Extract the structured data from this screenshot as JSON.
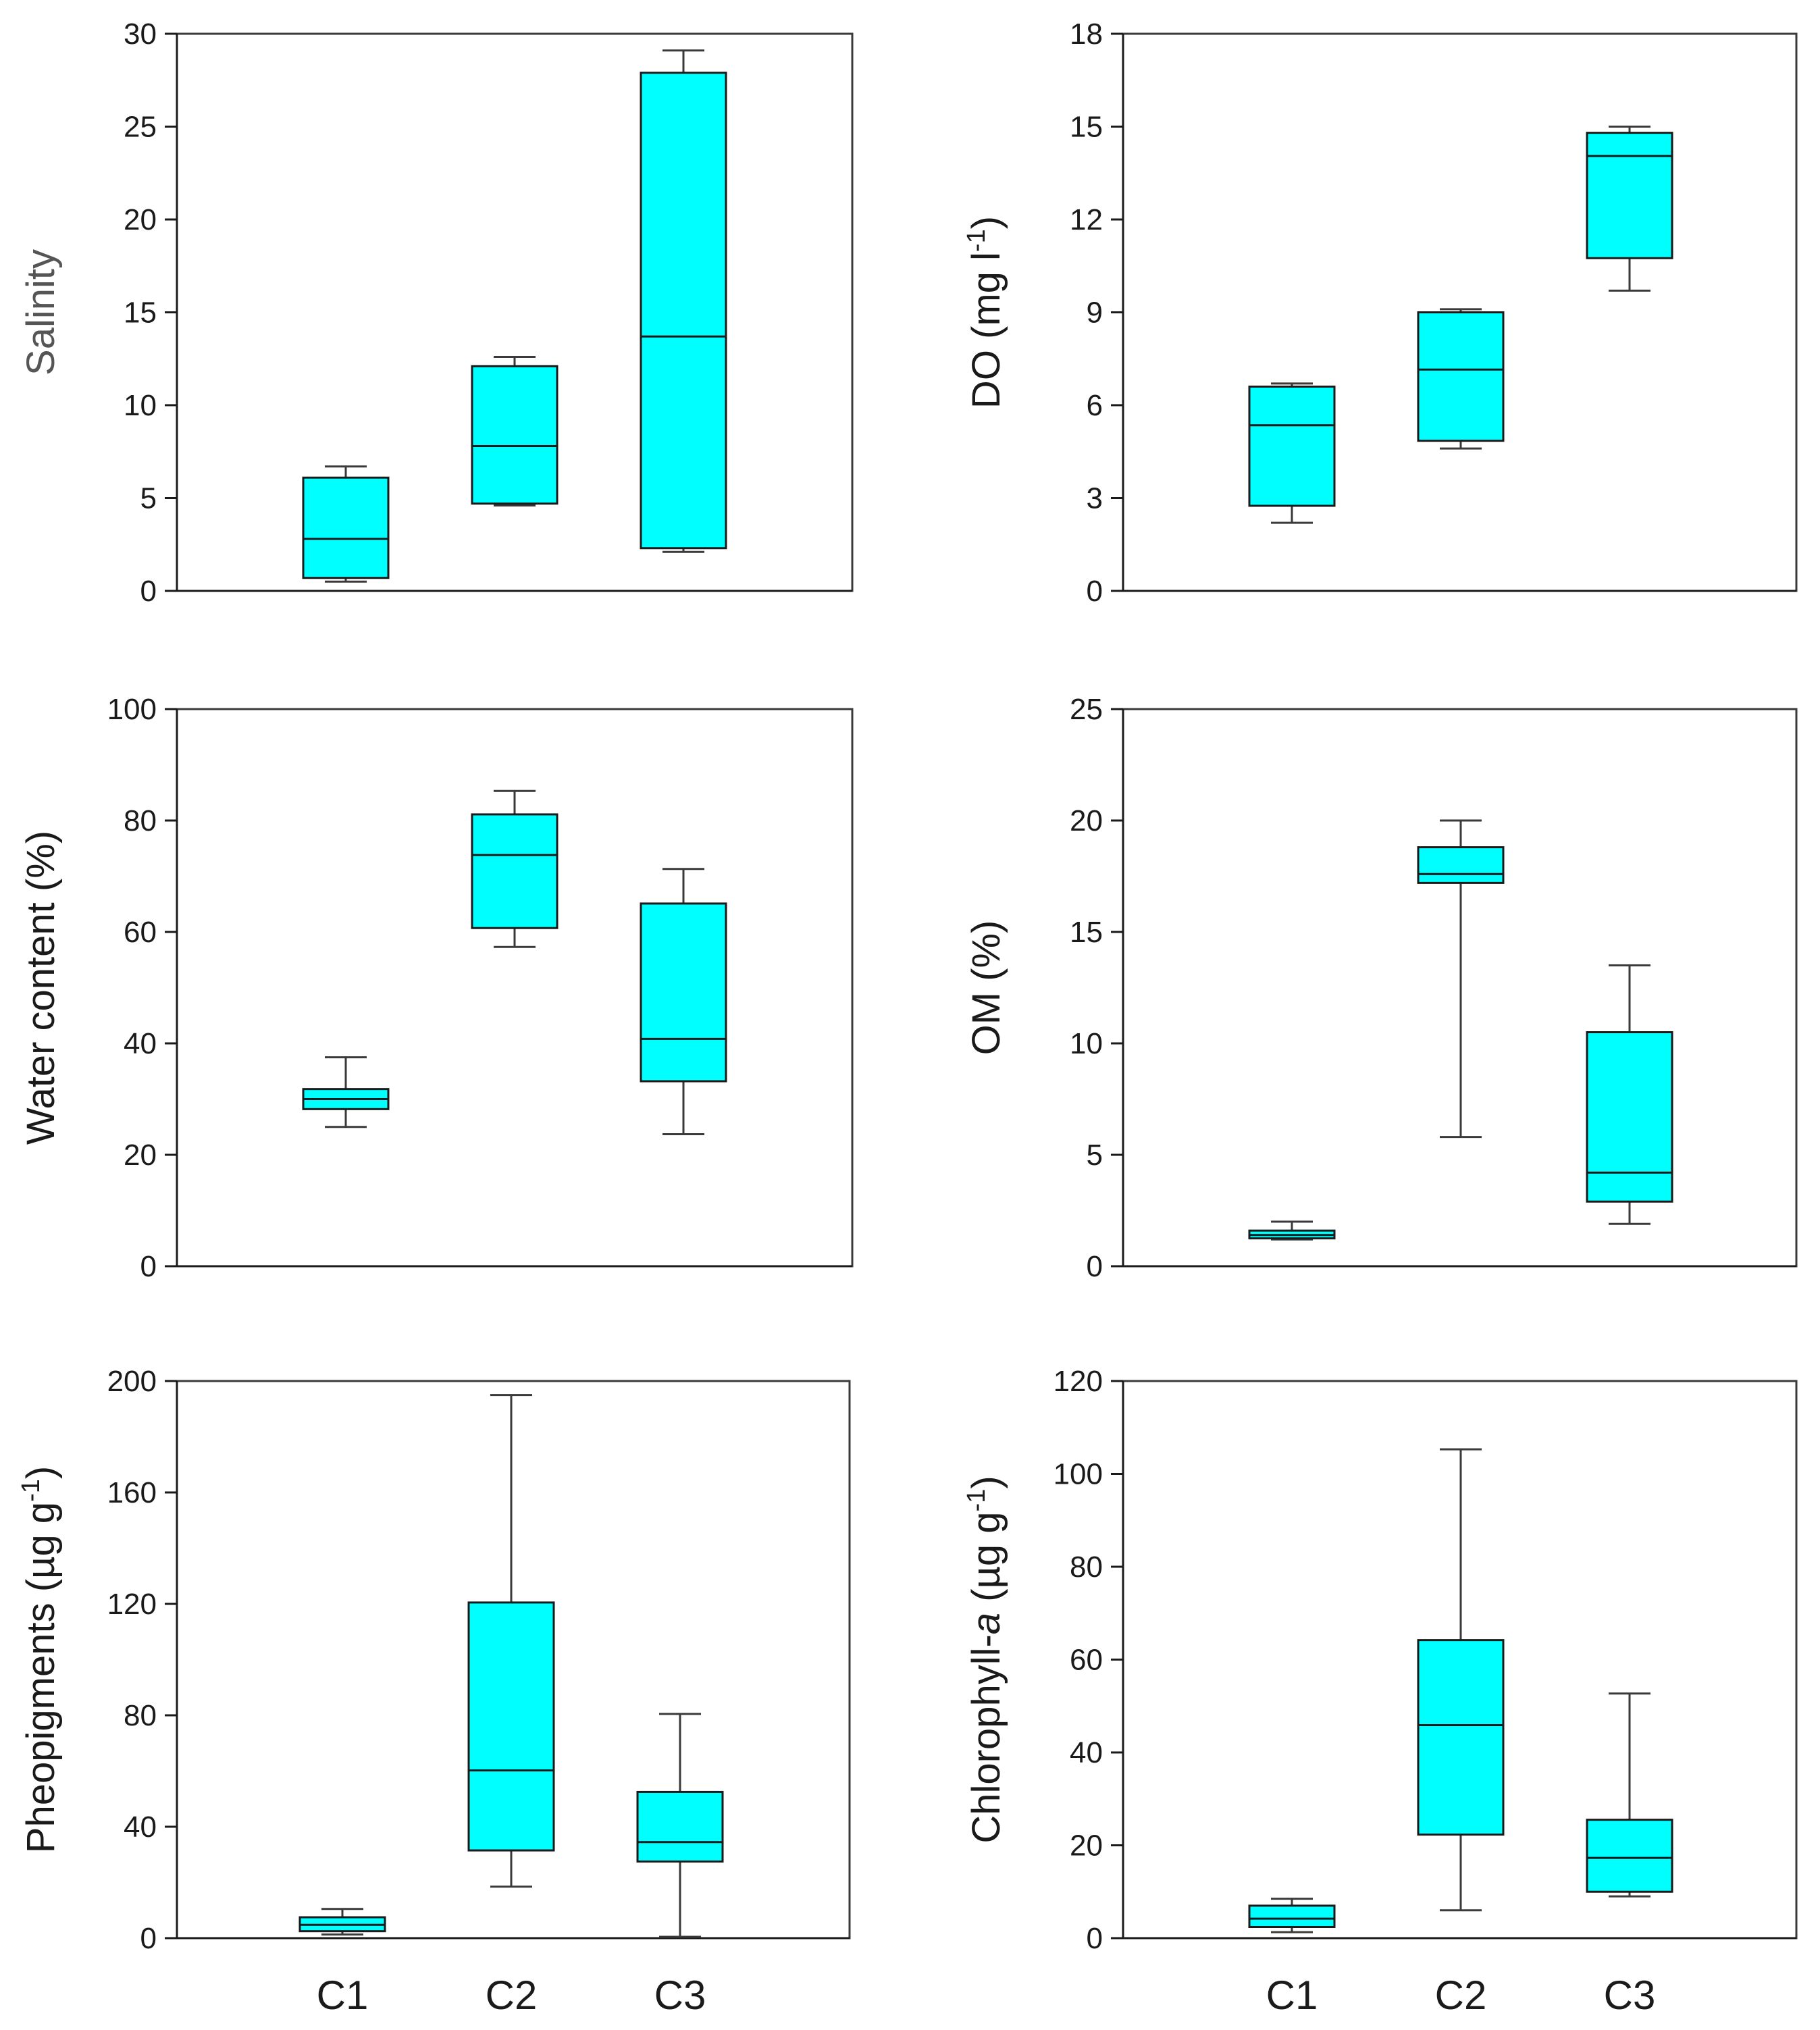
{
  "chart_data": [
    {
      "type": "box",
      "panel": "top-left",
      "ylabel": "Salinity",
      "ylim": [
        0,
        30
      ],
      "yticks": [
        "0",
        "5",
        "10",
        "15",
        "20",
        "25",
        "30"
      ],
      "categories": [
        "C1",
        "C2",
        "C3"
      ],
      "boxes": [
        {
          "category": "C1",
          "min": 0.5,
          "q1": 0.7,
          "median": 2.8,
          "q3": 6.1,
          "max": 6.7
        },
        {
          "category": "C2",
          "min": 4.6,
          "q1": 4.7,
          "median": 7.8,
          "q3": 12.1,
          "max": 12.6
        },
        {
          "category": "C3",
          "min": 2.1,
          "q1": 2.3,
          "median": 13.7,
          "q3": 27.9,
          "max": 29.1
        }
      ]
    },
    {
      "type": "box",
      "panel": "top-right",
      "ylabel": "DO (mg l",
      "ylabel_sup": "-1",
      "ylabel_end": ")",
      "ylim": [
        0,
        18
      ],
      "yticks": [
        "0",
        "3",
        "6",
        "9",
        "12",
        "15",
        "18"
      ],
      "categories": [
        "C1",
        "C2",
        "C3"
      ],
      "boxes": [
        {
          "category": "C1",
          "min": 2.2,
          "q1": 2.75,
          "median": 5.35,
          "q3": 6.6,
          "max": 6.7
        },
        {
          "category": "C2",
          "min": 4.6,
          "q1": 4.85,
          "median": 7.15,
          "q3": 9.0,
          "max": 9.1
        },
        {
          "category": "C3",
          "min": 9.7,
          "q1": 10.75,
          "median": 14.05,
          "q3": 14.8,
          "max": 15.0
        }
      ]
    },
    {
      "type": "box",
      "panel": "middle-left",
      "ylabel": "Water content  (%)",
      "ylim": [
        0,
        100
      ],
      "yticks": [
        "0",
        "20",
        "40",
        "60",
        "80",
        "100"
      ],
      "categories": [
        "C1",
        "C2",
        "C3"
      ],
      "boxes": [
        {
          "category": "C1",
          "min": 25,
          "q1": 28.2,
          "median": 30,
          "q3": 31.8,
          "max": 37.5
        },
        {
          "category": "C2",
          "min": 57.3,
          "q1": 60.7,
          "median": 73.8,
          "q3": 81.1,
          "max": 85.3
        },
        {
          "category": "C3",
          "min": 23.7,
          "q1": 33.2,
          "median": 40.8,
          "q3": 65.1,
          "max": 71.3
        }
      ]
    },
    {
      "type": "box",
      "panel": "middle-right",
      "ylabel": "OM (%)",
      "ylim": [
        0,
        25
      ],
      "yticks": [
        "0",
        "5",
        "10",
        "15",
        "20",
        "25"
      ],
      "categories": [
        "C1",
        "C2",
        "C3"
      ],
      "boxes": [
        {
          "category": "C1",
          "min": 1.2,
          "q1": 1.25,
          "median": 1.4,
          "q3": 1.6,
          "max": 2.0
        },
        {
          "category": "C2",
          "min": 5.8,
          "q1": 17.2,
          "median": 17.6,
          "q3": 18.8,
          "max": 20.0
        },
        {
          "category": "C3",
          "min": 1.9,
          "q1": 2.9,
          "median": 4.2,
          "q3": 10.5,
          "max": 13.5
        }
      ]
    },
    {
      "type": "box",
      "panel": "bottom-left",
      "ylabel": "Pheopigments (µg g",
      "ylabel_sup": "-1",
      "ylabel_end": ")",
      "ylim": [
        0,
        200
      ],
      "yticks": [
        "0",
        "40",
        "80",
        "120",
        "160",
        "200"
      ],
      "categories": [
        "C1",
        "C2",
        "C3"
      ],
      "boxes": [
        {
          "category": "C1",
          "min": 1.3,
          "q1": 2.5,
          "median": 4.8,
          "q3": 7.5,
          "max": 10.5
        },
        {
          "category": "C2",
          "min": 18.5,
          "q1": 31.5,
          "median": 60.2,
          "q3": 120.5,
          "max": 195.0
        },
        {
          "category": "C3",
          "min": 0.5,
          "q1": 27.5,
          "median": 34.5,
          "q3": 52.5,
          "max": 80.5
        }
      ]
    },
    {
      "type": "box",
      "panel": "bottom-right",
      "ylabel": "Chlorophyll-",
      "ylabel_italic": "a",
      "ylabel_end": " (µg g",
      "ylabel_sup": "-1",
      "ylabel_close": ")",
      "ylim": [
        0,
        120
      ],
      "yticks": [
        "0",
        "20",
        "40",
        "60",
        "80",
        "100",
        "120"
      ],
      "categories": [
        "C1",
        "C2",
        "C3"
      ],
      "boxes": [
        {
          "category": "C1",
          "min": 1.3,
          "q1": 2.4,
          "median": 4.2,
          "q3": 7.0,
          "max": 8.5
        },
        {
          "category": "C2",
          "min": 6.0,
          "q1": 22.3,
          "median": 45.9,
          "q3": 64.2,
          "max": 105.3
        },
        {
          "category": "C3",
          "min": 9.0,
          "q1": 10.0,
          "median": 17.3,
          "q3": 25.5,
          "max": 52.7
        }
      ]
    }
  ],
  "x_axis_labels": {
    "left": [
      "C1",
      "C2",
      "C3"
    ],
    "right": [
      "C1",
      "C2",
      "C3"
    ]
  }
}
